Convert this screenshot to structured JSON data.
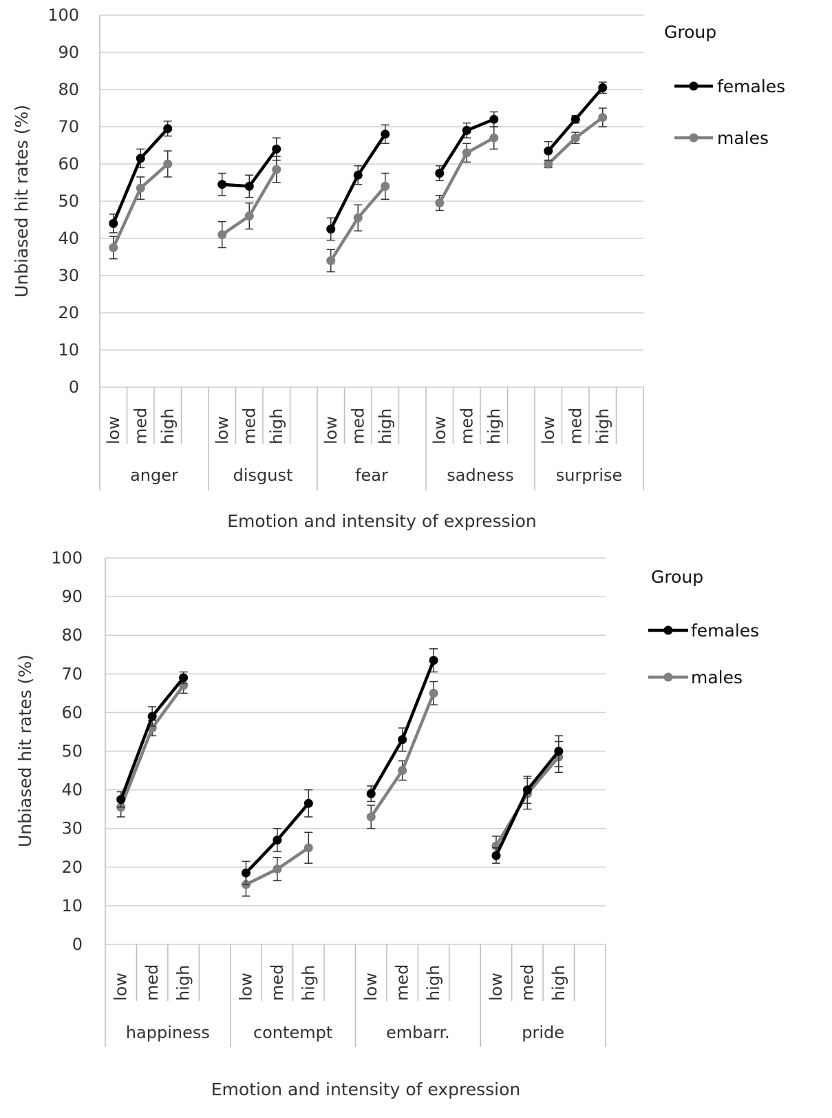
{
  "chart_data": [
    {
      "type": "line",
      "ylabel": "Unbiased hit rates (%)",
      "xlabel": "Emotion and intensity of expression",
      "ylim": [
        0,
        100
      ],
      "yticks": [
        0,
        10,
        20,
        30,
        40,
        50,
        60,
        70,
        80,
        90,
        100
      ],
      "grid": true,
      "legend_title": "Group",
      "legend_position": "right",
      "levels": [
        "low",
        "med",
        "high"
      ],
      "groups": [
        {
          "label": "anger",
          "females": [
            44,
            61.5,
            69.5
          ],
          "females_err": [
            2.5,
            2.5,
            2
          ],
          "males": [
            37.5,
            53.5,
            60
          ],
          "males_err": [
            3,
            3,
            3.5
          ]
        },
        {
          "label": "disgust",
          "females": [
            54.5,
            54,
            64
          ],
          "females_err": [
            3,
            3,
            3
          ],
          "males": [
            41,
            46,
            58.5
          ],
          "males_err": [
            3.5,
            3.5,
            3.5
          ]
        },
        {
          "label": "fear",
          "females": [
            42.5,
            57,
            68
          ],
          "females_err": [
            3,
            2.5,
            2.5
          ],
          "males": [
            34,
            45.5,
            54
          ],
          "males_err": [
            3,
            3.5,
            3.5
          ]
        },
        {
          "label": "sadness",
          "females": [
            57.5,
            69,
            72
          ],
          "females_err": [
            2,
            2,
            2
          ],
          "males": [
            49.5,
            63,
            67
          ],
          "males_err": [
            2,
            2.5,
            3
          ]
        },
        {
          "label": "surprise",
          "females": [
            63.5,
            72,
            80.5
          ],
          "females_err": [
            2.5,
            1,
            1.5
          ],
          "males": [
            60,
            67,
            72.5
          ],
          "males_err": [
            1,
            1.5,
            2.5
          ]
        }
      ],
      "series": [
        {
          "name": "females",
          "color": "#000000"
        },
        {
          "name": "males",
          "color": "#808080"
        }
      ]
    },
    {
      "type": "line",
      "ylabel": "Unbiased hit rates (%)",
      "xlabel": "Emotion and intensity of expression",
      "ylim": [
        0,
        100
      ],
      "yticks": [
        0,
        10,
        20,
        30,
        40,
        50,
        60,
        70,
        80,
        90,
        100
      ],
      "grid": true,
      "legend_title": "Group",
      "legend_position": "right",
      "levels": [
        "low",
        "med",
        "high"
      ],
      "groups": [
        {
          "label": "happiness",
          "females": [
            37.5,
            59,
            69
          ],
          "females_err": [
            2,
            2.5,
            1.5
          ],
          "males": [
            35.5,
            56,
            67
          ],
          "males_err": [
            2.5,
            2,
            2
          ]
        },
        {
          "label": "contempt",
          "females": [
            18.5,
            27,
            36.5
          ],
          "females_err": [
            3,
            3,
            3.5
          ],
          "males": [
            15.5,
            19.5,
            25
          ],
          "males_err": [
            3,
            3,
            4
          ]
        },
        {
          "label": "embarr.",
          "females": [
            39,
            53,
            73.5
          ],
          "females_err": [
            2,
            3,
            3
          ],
          "males": [
            33,
            45,
            65
          ],
          "males_err": [
            3,
            2.5,
            3
          ]
        },
        {
          "label": "pride",
          "females": [
            23,
            40,
            50
          ],
          "females_err": [
            2,
            3.5,
            4
          ],
          "males": [
            25.5,
            39,
            48.5
          ],
          "males_err": [
            2.5,
            4,
            4
          ]
        }
      ],
      "series": [
        {
          "name": "females",
          "color": "#000000"
        },
        {
          "name": "males",
          "color": "#808080"
        }
      ]
    }
  ]
}
